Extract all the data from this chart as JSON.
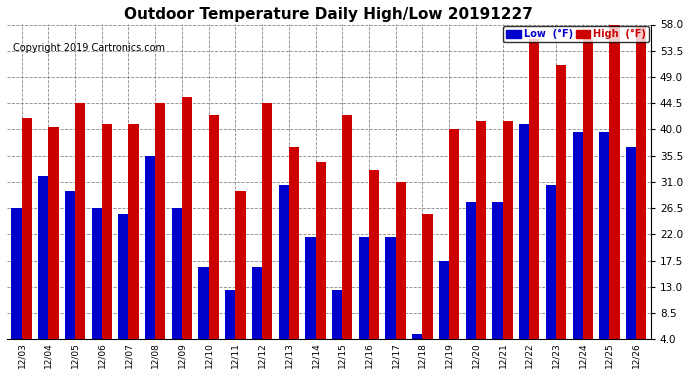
{
  "title": "Outdoor Temperature Daily High/Low 20191227",
  "copyright": "Copyright 2019 Cartronics.com",
  "legend_low": "Low  (°F)",
  "legend_high": "High  (°F)",
  "dates": [
    "12/03",
    "12/04",
    "12/05",
    "12/06",
    "12/07",
    "12/08",
    "12/09",
    "12/10",
    "12/11",
    "12/12",
    "12/13",
    "12/14",
    "12/15",
    "12/16",
    "12/17",
    "12/18",
    "12/19",
    "12/20",
    "12/21",
    "12/22",
    "12/23",
    "12/24",
    "12/25",
    "12/26"
  ],
  "high": [
    42.0,
    40.5,
    44.5,
    41.0,
    41.0,
    44.5,
    45.5,
    42.5,
    29.5,
    44.5,
    37.0,
    34.5,
    42.5,
    33.0,
    31.0,
    25.5,
    40.0,
    41.5,
    41.5,
    55.5,
    51.0,
    55.5,
    58.0,
    57.5
  ],
  "low": [
    26.5,
    32.0,
    29.5,
    26.5,
    25.5,
    35.5,
    26.5,
    16.5,
    12.5,
    16.5,
    30.5,
    21.5,
    12.5,
    21.5,
    21.5,
    5.0,
    17.5,
    27.5,
    27.5,
    41.0,
    30.5,
    39.5,
    39.5,
    37.0
  ],
  "ylim": [
    4.0,
    58.0
  ],
  "yticks": [
    4.0,
    8.5,
    13.0,
    17.5,
    22.0,
    26.5,
    31.0,
    35.5,
    40.0,
    44.5,
    49.0,
    53.5,
    58.0
  ],
  "color_low": "#0000cc",
  "color_high": "#cc0000",
  "bg_color": "#ffffff",
  "plot_bg": "#ffffff",
  "grid_color": "#888888",
  "title_fontsize": 11,
  "copyright_fontsize": 7,
  "bar_width": 0.38,
  "figwidth": 6.9,
  "figheight": 3.75,
  "dpi": 100
}
